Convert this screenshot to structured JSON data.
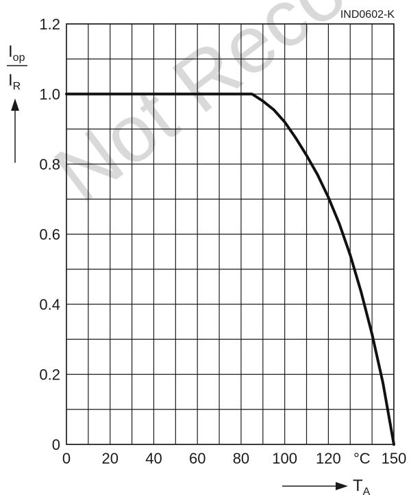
{
  "chart_data": {
    "type": "line",
    "code": "IND0602-K",
    "watermark": "Not Recommended",
    "x": [
      0,
      85,
      90,
      95,
      100,
      105,
      110,
      115,
      120,
      125,
      130,
      135,
      140,
      145,
      150
    ],
    "series": [
      {
        "values": [
          1.0,
          1.0,
          0.98,
          0.955,
          0.92,
          0.875,
          0.825,
          0.77,
          0.705,
          0.63,
          0.54,
          0.435,
          0.315,
          0.175,
          0.0
        ]
      }
    ],
    "xlim": [
      0,
      150
    ],
    "ylim": [
      0,
      1.2
    ],
    "x_ticks": [
      "0",
      "20",
      "40",
      "60",
      "80",
      "100",
      "120",
      "150"
    ],
    "x_tick_values": [
      0,
      20,
      40,
      60,
      80,
      100,
      120,
      150
    ],
    "x_unit": "°C",
    "y_ticks": [
      "0",
      "0.2",
      "0.4",
      "0.6",
      "0.8",
      "1.0",
      "1.2"
    ],
    "y_tick_values": [
      0,
      0.2,
      0.4,
      0.6,
      0.8,
      1.0,
      1.2
    ],
    "ylabel": {
      "num_main": "I",
      "num_sub": "op",
      "den_main": "I",
      "den_sub": "R"
    },
    "xlabel": {
      "main": "T",
      "sub": "A"
    },
    "grid": true,
    "line_color": "#111111",
    "grid_color": "#1a1a1a"
  }
}
